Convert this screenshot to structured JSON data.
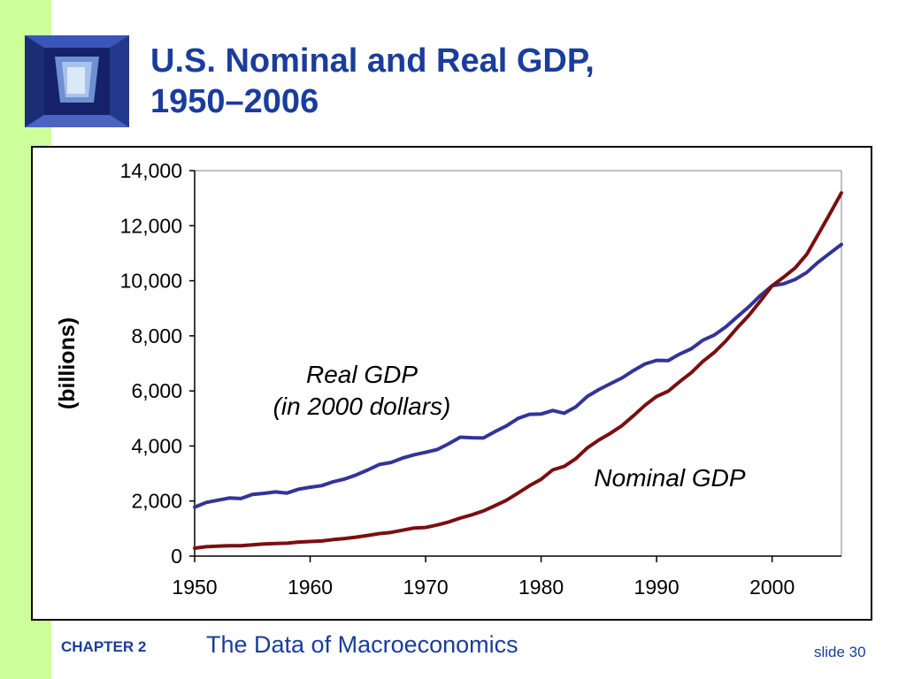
{
  "title": {
    "line1": "U.S. Nominal and Real GDP,",
    "line2": "1950–2006"
  },
  "footer": {
    "chapter_label": "CHAPTER 2",
    "chapter_title": "The Data of Macroeconomics",
    "slide_label": "slide 30"
  },
  "colors": {
    "title": "#1a3d9c",
    "sidebar": "#ccff99",
    "real_gdp": "#33339a",
    "nominal_gdp": "#7a0f0f"
  },
  "icons": {
    "logo": "window-shaft-logo-icon"
  },
  "chart_data": {
    "type": "line",
    "ylabel": "(billions)",
    "xlabel": "",
    "xlim": [
      1950,
      2006
    ],
    "ylim": [
      0,
      14000
    ],
    "xticks": [
      1950,
      1960,
      1970,
      1980,
      1990,
      2000
    ],
    "yticks": [
      0,
      2000,
      4000,
      6000,
      8000,
      10000,
      12000,
      14000
    ],
    "ytick_labels": [
      "0",
      "2,000",
      "4,000",
      "6,000",
      "8,000",
      "10,000",
      "12,000",
      "14,000"
    ],
    "grid": false,
    "annotations": [
      {
        "series": "Real GDP",
        "lines": [
          "Real GDP",
          "(in 2000 dollars)"
        ]
      },
      {
        "series": "Nominal GDP",
        "lines": [
          "Nominal GDP"
        ]
      }
    ],
    "series": [
      {
        "name": "Real GDP",
        "x": [
          1950,
          1951,
          1952,
          1953,
          1954,
          1955,
          1956,
          1957,
          1958,
          1959,
          1960,
          1961,
          1962,
          1963,
          1964,
          1965,
          1966,
          1967,
          1968,
          1969,
          1970,
          1971,
          1972,
          1973,
          1974,
          1975,
          1976,
          1977,
          1978,
          1979,
          1980,
          1981,
          1982,
          1983,
          1984,
          1985,
          1986,
          1987,
          1988,
          1989,
          1990,
          1991,
          1992,
          1993,
          1994,
          1995,
          1996,
          1997,
          1998,
          1999,
          2000,
          2001,
          2002,
          2003,
          2004,
          2005,
          2006
        ],
        "values": [
          1780,
          1950,
          2030,
          2110,
          2090,
          2240,
          2280,
          2330,
          2290,
          2430,
          2500,
          2560,
          2700,
          2800,
          2950,
          3130,
          3330,
          3400,
          3560,
          3680,
          3770,
          3870,
          4080,
          4320,
          4300,
          4290,
          4520,
          4730,
          5000,
          5150,
          5160,
          5290,
          5190,
          5420,
          5800,
          6050,
          6260,
          6470,
          6740,
          6980,
          7110,
          7100,
          7340,
          7530,
          7840,
          8030,
          8330,
          8700,
          9060,
          9470,
          9820,
          9890,
          10050,
          10300,
          10680,
          11000,
          11320
        ]
      },
      {
        "name": "Nominal GDP",
        "x": [
          1950,
          1951,
          1952,
          1953,
          1954,
          1955,
          1956,
          1957,
          1958,
          1959,
          1960,
          1961,
          1962,
          1963,
          1964,
          1965,
          1966,
          1967,
          1968,
          1969,
          1970,
          1971,
          1972,
          1973,
          1974,
          1975,
          1976,
          1977,
          1978,
          1979,
          1980,
          1981,
          1982,
          1983,
          1984,
          1985,
          1986,
          1987,
          1988,
          1989,
          1990,
          1991,
          1992,
          1993,
          1994,
          1995,
          1996,
          1997,
          1998,
          1999,
          2000,
          2001,
          2002,
          2003,
          2004,
          2005,
          2006
        ],
        "values": [
          290,
          340,
          360,
          380,
          380,
          410,
          440,
          460,
          470,
          510,
          530,
          550,
          600,
          640,
          690,
          750,
          820,
          860,
          940,
          1020,
          1040,
          1130,
          1240,
          1380,
          1500,
          1640,
          1830,
          2030,
          2290,
          2560,
          2790,
          3130,
          3260,
          3540,
          3930,
          4220,
          4460,
          4740,
          5100,
          5480,
          5800,
          5990,
          6340,
          6660,
          7070,
          7400,
          7820,
          8300,
          8750,
          9270,
          9820,
          10130,
          10470,
          10960,
          11690,
          12430,
          13190
        ]
      }
    ]
  }
}
